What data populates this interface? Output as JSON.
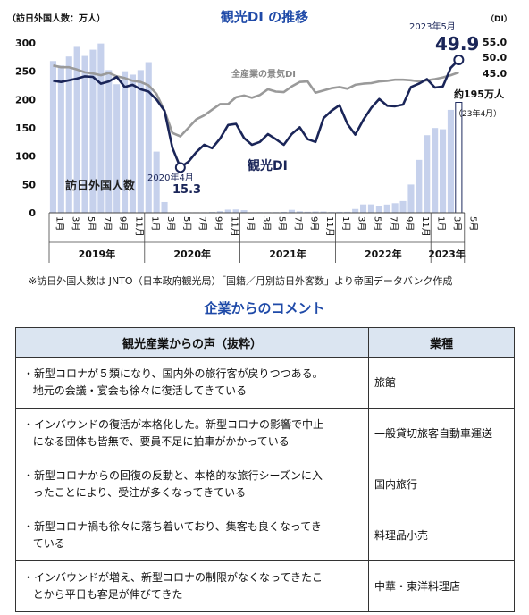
{
  "chart_data": {
    "type": "bar+line",
    "title": "観光DI の推移",
    "left_axis_label": "（訪日外国人数：万人）",
    "left_ticks": [
      0,
      50,
      100,
      150,
      200,
      250,
      300
    ],
    "ylim_left": [
      0,
      300
    ],
    "right_axis_label": "（DI）",
    "right_ticks": [
      "55.0",
      "50.0",
      "45.0"
    ],
    "month_labels": [
      "1月",
      "3月",
      "5月",
      "7月",
      "9月",
      "11月",
      "1月",
      "3月",
      "5月",
      "7月",
      "9月",
      "11月",
      "1月",
      "3月",
      "5月",
      "7月",
      "9月",
      "11月",
      "1月",
      "3月",
      "5月",
      "7月",
      "9月",
      "11月",
      "1月",
      "3月",
      "5月"
    ],
    "year_labels": [
      "2019年",
      "2020年",
      "2021年",
      "2022年",
      "2023年"
    ],
    "bars_name": "訪日外国人数",
    "bars": [
      268,
      260,
      276,
      293,
      277,
      288,
      299,
      252,
      227,
      250,
      244,
      252,
      266,
      108,
      19,
      0.3,
      0.2,
      0.3,
      0.4,
      0.9,
      1.4,
      2.8,
      5.6,
      5.9,
      4.7,
      0.7,
      1.1,
      1.1,
      1.2,
      1.6,
      5.2,
      2.6,
      1.8,
      2.2,
      2.2,
      1.4,
      1.7,
      1.7,
      6.7,
      14.7,
      14.8,
      12.0,
      14.5,
      16.9,
      20.7,
      49.9,
      93.4,
      137.0,
      149.7,
      147.5,
      181.7,
      195
    ],
    "bars_note": [
      "約195万人",
      "（23年4月）"
    ],
    "kanko_di_name": "観光DI",
    "kanko_di": [
      233,
      231,
      234,
      237,
      241,
      240,
      228,
      232,
      240,
      222,
      226,
      218,
      214,
      200,
      180,
      115,
      80,
      90,
      107,
      120,
      114,
      131,
      155,
      157,
      132,
      120,
      125,
      139,
      130,
      120,
      139,
      151,
      130,
      125,
      167,
      180,
      190,
      157,
      138,
      164,
      185,
      201,
      189,
      188,
      191,
      222,
      228,
      236,
      221,
      223,
      256,
      270
    ],
    "zenkigyo_di_name": "全産業の景気DI",
    "zenkigyo_di": [
      260,
      257,
      257,
      253,
      248,
      246,
      243,
      247,
      241,
      238,
      233,
      231,
      225,
      210,
      180,
      141,
      135,
      150,
      165,
      172,
      182,
      192,
      192,
      204,
      207,
      203,
      208,
      218,
      214,
      213,
      223,
      231,
      232,
      212,
      216,
      220,
      222,
      219,
      226,
      228,
      229,
      232,
      233,
      235,
      235,
      234,
      232,
      234,
      236,
      239,
      243,
      248
    ],
    "annotations": {
      "low_date": "2020年4月",
      "low_value": "15.3",
      "high_date": "2023年5月",
      "high_value": "49.9"
    }
  },
  "note": "※訪日外国人数は JNTO（日本政府観光局）「国籍／月別訪日外客数」より帝国データバンク作成",
  "comments": {
    "title": "企業からのコメント",
    "header_voice": "観光産業からの声（抜粋）",
    "header_industry": "業種",
    "rows": [
      {
        "line1": "・新型コロナが５類になり、国内外の旅行客が戻りつつある。",
        "line2": "地元の会議・宴会も徐々に復活してきている",
        "industry": "旅館"
      },
      {
        "line1": "・インバウンドの復活が本格化した。新型コロナの影響で中止",
        "line2": "になる団体も皆無で、要員不足に拍車がかかっている",
        "industry": "一般貸切旅客自動車運送"
      },
      {
        "line1": "・新型コロナからの回復の反動と、本格的な旅行シーズンに入",
        "line2": "ったことにより、受注が多くなってきている",
        "industry": "国内旅行"
      },
      {
        "line1": "・新型コロナ禍も徐々に落ち着いており、集客も良くなってき",
        "line2": "ている",
        "industry": "料理品小売"
      },
      {
        "line1": "・インバウンドが増え、新型コロナの制限がなくなってきたこ",
        "line2": "とから平日も客足が伸びてきた",
        "industry": "中華・東洋料理店"
      }
    ]
  }
}
